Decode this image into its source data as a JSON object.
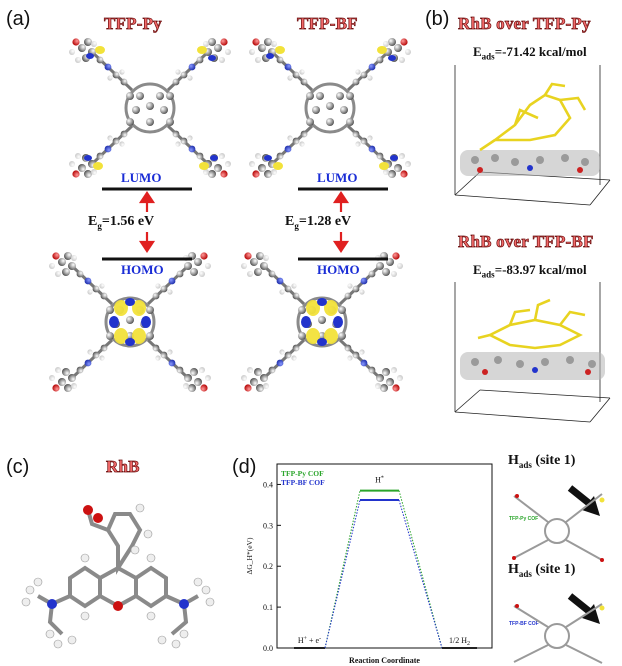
{
  "panels": {
    "a": "(a)",
    "b": "(b)",
    "c": "(c)",
    "d": "(d)"
  },
  "panel_a": {
    "left_title": "TFP-Py",
    "right_title": "TFP-BF",
    "lumo": "LUMO",
    "homo": "HOMO",
    "left_eg_prefix": "E",
    "left_eg_sub": "g",
    "left_eg_value": "=1.56 eV",
    "right_eg_prefix": "E",
    "right_eg_sub": "g",
    "right_eg_value": "=1.28 eV"
  },
  "panel_b": {
    "top_title": "RhB over TFP-Py",
    "top_eads_prefix": "E",
    "top_eads_sub": "ads",
    "top_eads_value": "=-71.42 kcal/mol",
    "bottom_title": "RhB over TFP-BF",
    "bottom_eads_prefix": "E",
    "bottom_eads_sub": "ads",
    "bottom_eads_value": "=-83.97 kcal/mol"
  },
  "panel_c": {
    "title": "RhB"
  },
  "panel_d": {
    "side_top_label_prefix": "H",
    "side_top_label_sub": "ads",
    "side_top_label_suffix": " (site 1)",
    "side_bottom_label_prefix": "H",
    "side_bottom_label_sub": "ads",
    "side_bottom_label_suffix": " (site 1)",
    "side_top_cof": "TFP-Py COF",
    "side_bottom_cof": "TFP-BF COF"
  },
  "colors": {
    "title_red": "#f26a6a",
    "level_blue": "#1a2dd6",
    "arrow_red": "#e02020",
    "series_green": "#2aa52a",
    "series_blue": "#2233cc",
    "orbital_yellow": "#f2e23a"
  },
  "chart_data": {
    "type": "line",
    "title": "",
    "xlabel": "Reaction Coordinate",
    "ylabel": "ΔG_H*(eV)",
    "ylim": [
      0.0,
      0.45
    ],
    "yticks": [
      "0.0",
      "0.1",
      "0.2",
      "0.3",
      "0.4"
    ],
    "states": [
      "H+ + e-",
      "H*",
      "1/2 H2"
    ],
    "state_labels": {
      "s0_main": "H",
      "s0_sup1": "+",
      "s0_mid": " + e",
      "s0_sup2": "-",
      "s1_main": "H",
      "s1_sup": "*",
      "s2_main": "1/2 H",
      "s2_sub": "2"
    },
    "series": [
      {
        "name": "TFP-Py COF",
        "values": [
          0.0,
          0.385,
          0.0
        ]
      },
      {
        "name": "TFP-BF COF",
        "values": [
          0.0,
          0.362,
          0.0
        ]
      }
    ],
    "legend_placement": "top-left",
    "grid": false
  }
}
